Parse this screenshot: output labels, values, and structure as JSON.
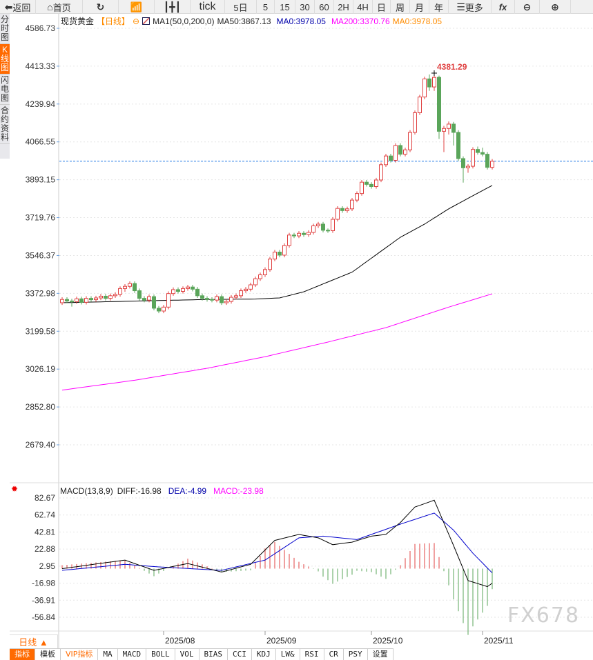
{
  "toolbar": {
    "items": [
      {
        "label": "返回",
        "icon": "back-arrow-icon"
      },
      {
        "label": "首页",
        "icon": "home-icon"
      },
      {
        "label": "",
        "icon": "refresh-icon"
      },
      {
        "label": "",
        "icon": "bar-chart-icon"
      },
      {
        "label": "",
        "icon": "candlestick-icon"
      },
      {
        "label": "tick"
      },
      {
        "label": "5日"
      },
      {
        "label": "5"
      },
      {
        "label": "15"
      },
      {
        "label": "30"
      },
      {
        "label": "60"
      },
      {
        "label": "2H"
      },
      {
        "label": "4H"
      },
      {
        "label": "日"
      },
      {
        "label": "周"
      },
      {
        "label": "月"
      },
      {
        "label": "年"
      },
      {
        "label": "更多",
        "icon": "menu-icon"
      },
      {
        "label": "fx",
        "icon": "formula-icon"
      },
      {
        "label": "",
        "icon": "zoom-out-icon"
      },
      {
        "label": "",
        "icon": "zoom-in-icon"
      }
    ]
  },
  "left_tabs": [
    {
      "label": "分时图"
    },
    {
      "label": "K线图",
      "active": true
    },
    {
      "label": "闪电图"
    },
    {
      "label": "合约资料"
    }
  ],
  "legend": {
    "symbol": "现货黄金",
    "period": "【日线】",
    "ma_name": "MA1(50,0,200,0)",
    "ma50": "MA50:3867.13",
    "ma0": "MA0:3978.05",
    "ma200": "MA200:3370.76",
    "ma0b": "MA0:3978.05"
  },
  "colors": {
    "up": "#e04040",
    "down": "#5aa55a",
    "ma50": "#000000",
    "ma200": "#ff00ff",
    "dea": "#0000cc",
    "ma0": "#0000aa",
    "ma0b": "#ff8c00",
    "accent": "#ff6a00",
    "last_line": "#1e78e6"
  },
  "chart_data": [
    {
      "type": "candlestick",
      "yticks": [
        4586.73,
        4413.33,
        4239.94,
        4066.55,
        3893.15,
        3719.76,
        3546.37,
        3372.98,
        3199.58,
        3026.19,
        2852.8,
        2679.4
      ],
      "ylim": [
        2679.4,
        4586.73
      ],
      "max_label": "4381.29",
      "max_index": 77,
      "last_price": 3978.05,
      "x_labels": [
        {
          "label": "2025/08",
          "index": 21
        },
        {
          "label": "2025/09",
          "index": 42
        },
        {
          "label": "2025/10",
          "index": 64
        },
        {
          "label": "2025/11",
          "index": 87
        }
      ],
      "ohlc": [
        [
          3330,
          3355,
          3320,
          3345
        ],
        [
          3345,
          3355,
          3328,
          3338
        ],
        [
          3338,
          3348,
          3312,
          3335
        ],
        [
          3335,
          3358,
          3325,
          3348
        ],
        [
          3348,
          3358,
          3322,
          3332
        ],
        [
          3332,
          3360,
          3322,
          3350
        ],
        [
          3350,
          3360,
          3334,
          3344
        ],
        [
          3344,
          3362,
          3334,
          3352
        ],
        [
          3352,
          3370,
          3342,
          3360
        ],
        [
          3360,
          3370,
          3340,
          3350
        ],
        [
          3350,
          3372,
          3340,
          3362
        ],
        [
          3362,
          3378,
          3352,
          3368
        ],
        [
          3368,
          3405,
          3358,
          3395
        ],
        [
          3395,
          3415,
          3380,
          3405
        ],
        [
          3405,
          3428,
          3395,
          3418
        ],
        [
          3418,
          3428,
          3375,
          3385
        ],
        [
          3385,
          3395,
          3340,
          3350
        ],
        [
          3350,
          3360,
          3332,
          3342
        ],
        [
          3342,
          3368,
          3332,
          3358
        ],
        [
          3358,
          3368,
          3295,
          3305
        ],
        [
          3305,
          3315,
          3282,
          3292
        ],
        [
          3292,
          3320,
          3282,
          3310
        ],
        [
          3310,
          3382,
          3300,
          3372
        ],
        [
          3372,
          3400,
          3362,
          3390
        ],
        [
          3390,
          3400,
          3372,
          3382
        ],
        [
          3382,
          3405,
          3372,
          3395
        ],
        [
          3395,
          3412,
          3385,
          3402
        ],
        [
          3402,
          3412,
          3382,
          3392
        ],
        [
          3392,
          3402,
          3352,
          3362
        ],
        [
          3362,
          3372,
          3340,
          3350
        ],
        [
          3350,
          3360,
          3335,
          3345
        ],
        [
          3345,
          3355,
          3332,
          3342
        ],
        [
          3342,
          3368,
          3332,
          3358
        ],
        [
          3358,
          3368,
          3320,
          3330
        ],
        [
          3330,
          3346,
          3320,
          3336
        ],
        [
          3336,
          3365,
          3326,
          3355
        ],
        [
          3355,
          3372,
          3345,
          3362
        ],
        [
          3362,
          3395,
          3352,
          3385
        ],
        [
          3385,
          3402,
          3375,
          3392
        ],
        [
          3392,
          3422,
          3382,
          3412
        ],
        [
          3412,
          3450,
          3402,
          3440
        ],
        [
          3440,
          3468,
          3430,
          3458
        ],
        [
          3458,
          3492,
          3448,
          3482
        ],
        [
          3482,
          3540,
          3472,
          3530
        ],
        [
          3530,
          3572,
          3520,
          3562
        ],
        [
          3562,
          3572,
          3538,
          3548
        ],
        [
          3548,
          3602,
          3538,
          3592
        ],
        [
          3592,
          3650,
          3582,
          3640
        ],
        [
          3640,
          3650,
          3626,
          3636
        ],
        [
          3636,
          3658,
          3626,
          3648
        ],
        [
          3648,
          3658,
          3632,
          3642
        ],
        [
          3642,
          3662,
          3632,
          3652
        ],
        [
          3652,
          3692,
          3642,
          3682
        ],
        [
          3682,
          3700,
          3672,
          3690
        ],
        [
          3690,
          3700,
          3652,
          3662
        ],
        [
          3662,
          3670,
          3650,
          3660
        ],
        [
          3660,
          3722,
          3650,
          3712
        ],
        [
          3712,
          3772,
          3702,
          3762
        ],
        [
          3762,
          3772,
          3742,
          3752
        ],
        [
          3752,
          3770,
          3742,
          3760
        ],
        [
          3760,
          3810,
          3750,
          3800
        ],
        [
          3800,
          3840,
          3790,
          3830
        ],
        [
          3830,
          3892,
          3820,
          3882
        ],
        [
          3882,
          3892,
          3862,
          3872
        ],
        [
          3872,
          3882,
          3852,
          3862
        ],
        [
          3862,
          3902,
          3852,
          3892
        ],
        [
          3892,
          3972,
          3882,
          3962
        ],
        [
          3962,
          4012,
          3952,
          4002
        ],
        [
          4002,
          4012,
          3972,
          3982
        ],
        [
          3982,
          4060,
          3972,
          4050
        ],
        [
          4050,
          4060,
          4000,
          4010
        ],
        [
          4010,
          4040,
          4000,
          4030
        ],
        [
          4030,
          4120,
          4020,
          4110
        ],
        [
          4110,
          4210,
          4100,
          4200
        ],
        [
          4200,
          4282,
          4190,
          4272
        ],
        [
          4272,
          4365,
          4262,
          4355
        ],
        [
          4355,
          4375,
          4300,
          4318
        ],
        [
          4318,
          4381.29,
          4300,
          4362
        ],
        [
          4362,
          4370,
          4080,
          4115
        ],
        [
          4115,
          4140,
          4020,
          4128
        ],
        [
          4128,
          4160,
          4100,
          4148
        ],
        [
          4148,
          4158,
          4050,
          4110
        ],
        [
          4110,
          4120,
          3980,
          3990
        ],
        [
          3990,
          4000,
          3880,
          3948
        ],
        [
          3948,
          3965,
          3925,
          3955
        ],
        [
          3955,
          4042,
          3945,
          4032
        ],
        [
          4032,
          4045,
          4008,
          4018
        ],
        [
          4018,
          4040,
          4000,
          4010
        ],
        [
          4010,
          4020,
          3940,
          3950
        ],
        [
          3950,
          3988,
          3940,
          3978.05
        ]
      ],
      "ma50": {
        "index": [
          0,
          10,
          20,
          30,
          40,
          45,
          50,
          55,
          60,
          65,
          70,
          75,
          80,
          85,
          89
        ],
        "values": [
          3330,
          3335,
          3340,
          3345,
          3347,
          3352,
          3380,
          3425,
          3470,
          3550,
          3630,
          3690,
          3760,
          3820,
          3867.13
        ]
      },
      "ma200": {
        "index": [
          0,
          15,
          30,
          42,
          55,
          67,
          80,
          89
        ],
        "values": [
          2930,
          2975,
          3030,
          3083,
          3150,
          3216,
          3310,
          3370.76
        ]
      }
    },
    {
      "type": "macd",
      "title": "MACD(13,8,9)",
      "diff_label": "DIFF:-16.98",
      "dea_label": "DEA:-4.99",
      "macd_label": "MACD:-23.98",
      "yticks": [
        82.67,
        62.74,
        42.81,
        22.88,
        2.95,
        -16.98,
        -36.91,
        -56.84
      ],
      "ylim": [
        -56.84,
        82.67
      ],
      "diff": {
        "index": [
          0,
          13,
          19,
          26,
          33,
          39,
          44,
          49,
          53,
          56,
          60,
          64,
          67,
          70,
          73,
          77,
          81,
          84,
          88,
          89
        ],
        "values": [
          0,
          10,
          -2,
          6,
          -4,
          5,
          33,
          40,
          36,
          28,
          31,
          38,
          40,
          54,
          72,
          80,
          27,
          -14,
          -21,
          -16.98
        ]
      },
      "dea": {
        "index": [
          0,
          13,
          20,
          33,
          42,
          49,
          54,
          61,
          70,
          77,
          81,
          85,
          89
        ],
        "values": [
          -2,
          5,
          2,
          -2,
          10,
          36,
          38,
          34,
          52,
          65,
          45,
          18,
          -4.99
        ]
      }
    }
  ],
  "day_button": "日线 ▲",
  "bottom_tabs": [
    {
      "label": "指标",
      "active": true
    },
    {
      "label": "模板"
    },
    {
      "label": "VIP指标",
      "vip": true
    },
    {
      "label": "MA"
    },
    {
      "label": "MACD"
    },
    {
      "label": "BOLL"
    },
    {
      "label": "VOL"
    },
    {
      "label": "BIAS"
    },
    {
      "label": "CCI"
    },
    {
      "label": "KDJ"
    },
    {
      "label": "LW&"
    },
    {
      "label": "RSI"
    },
    {
      "label": "CR"
    },
    {
      "label": "PSY"
    },
    {
      "label": "设置"
    }
  ],
  "watermark": "FX678"
}
